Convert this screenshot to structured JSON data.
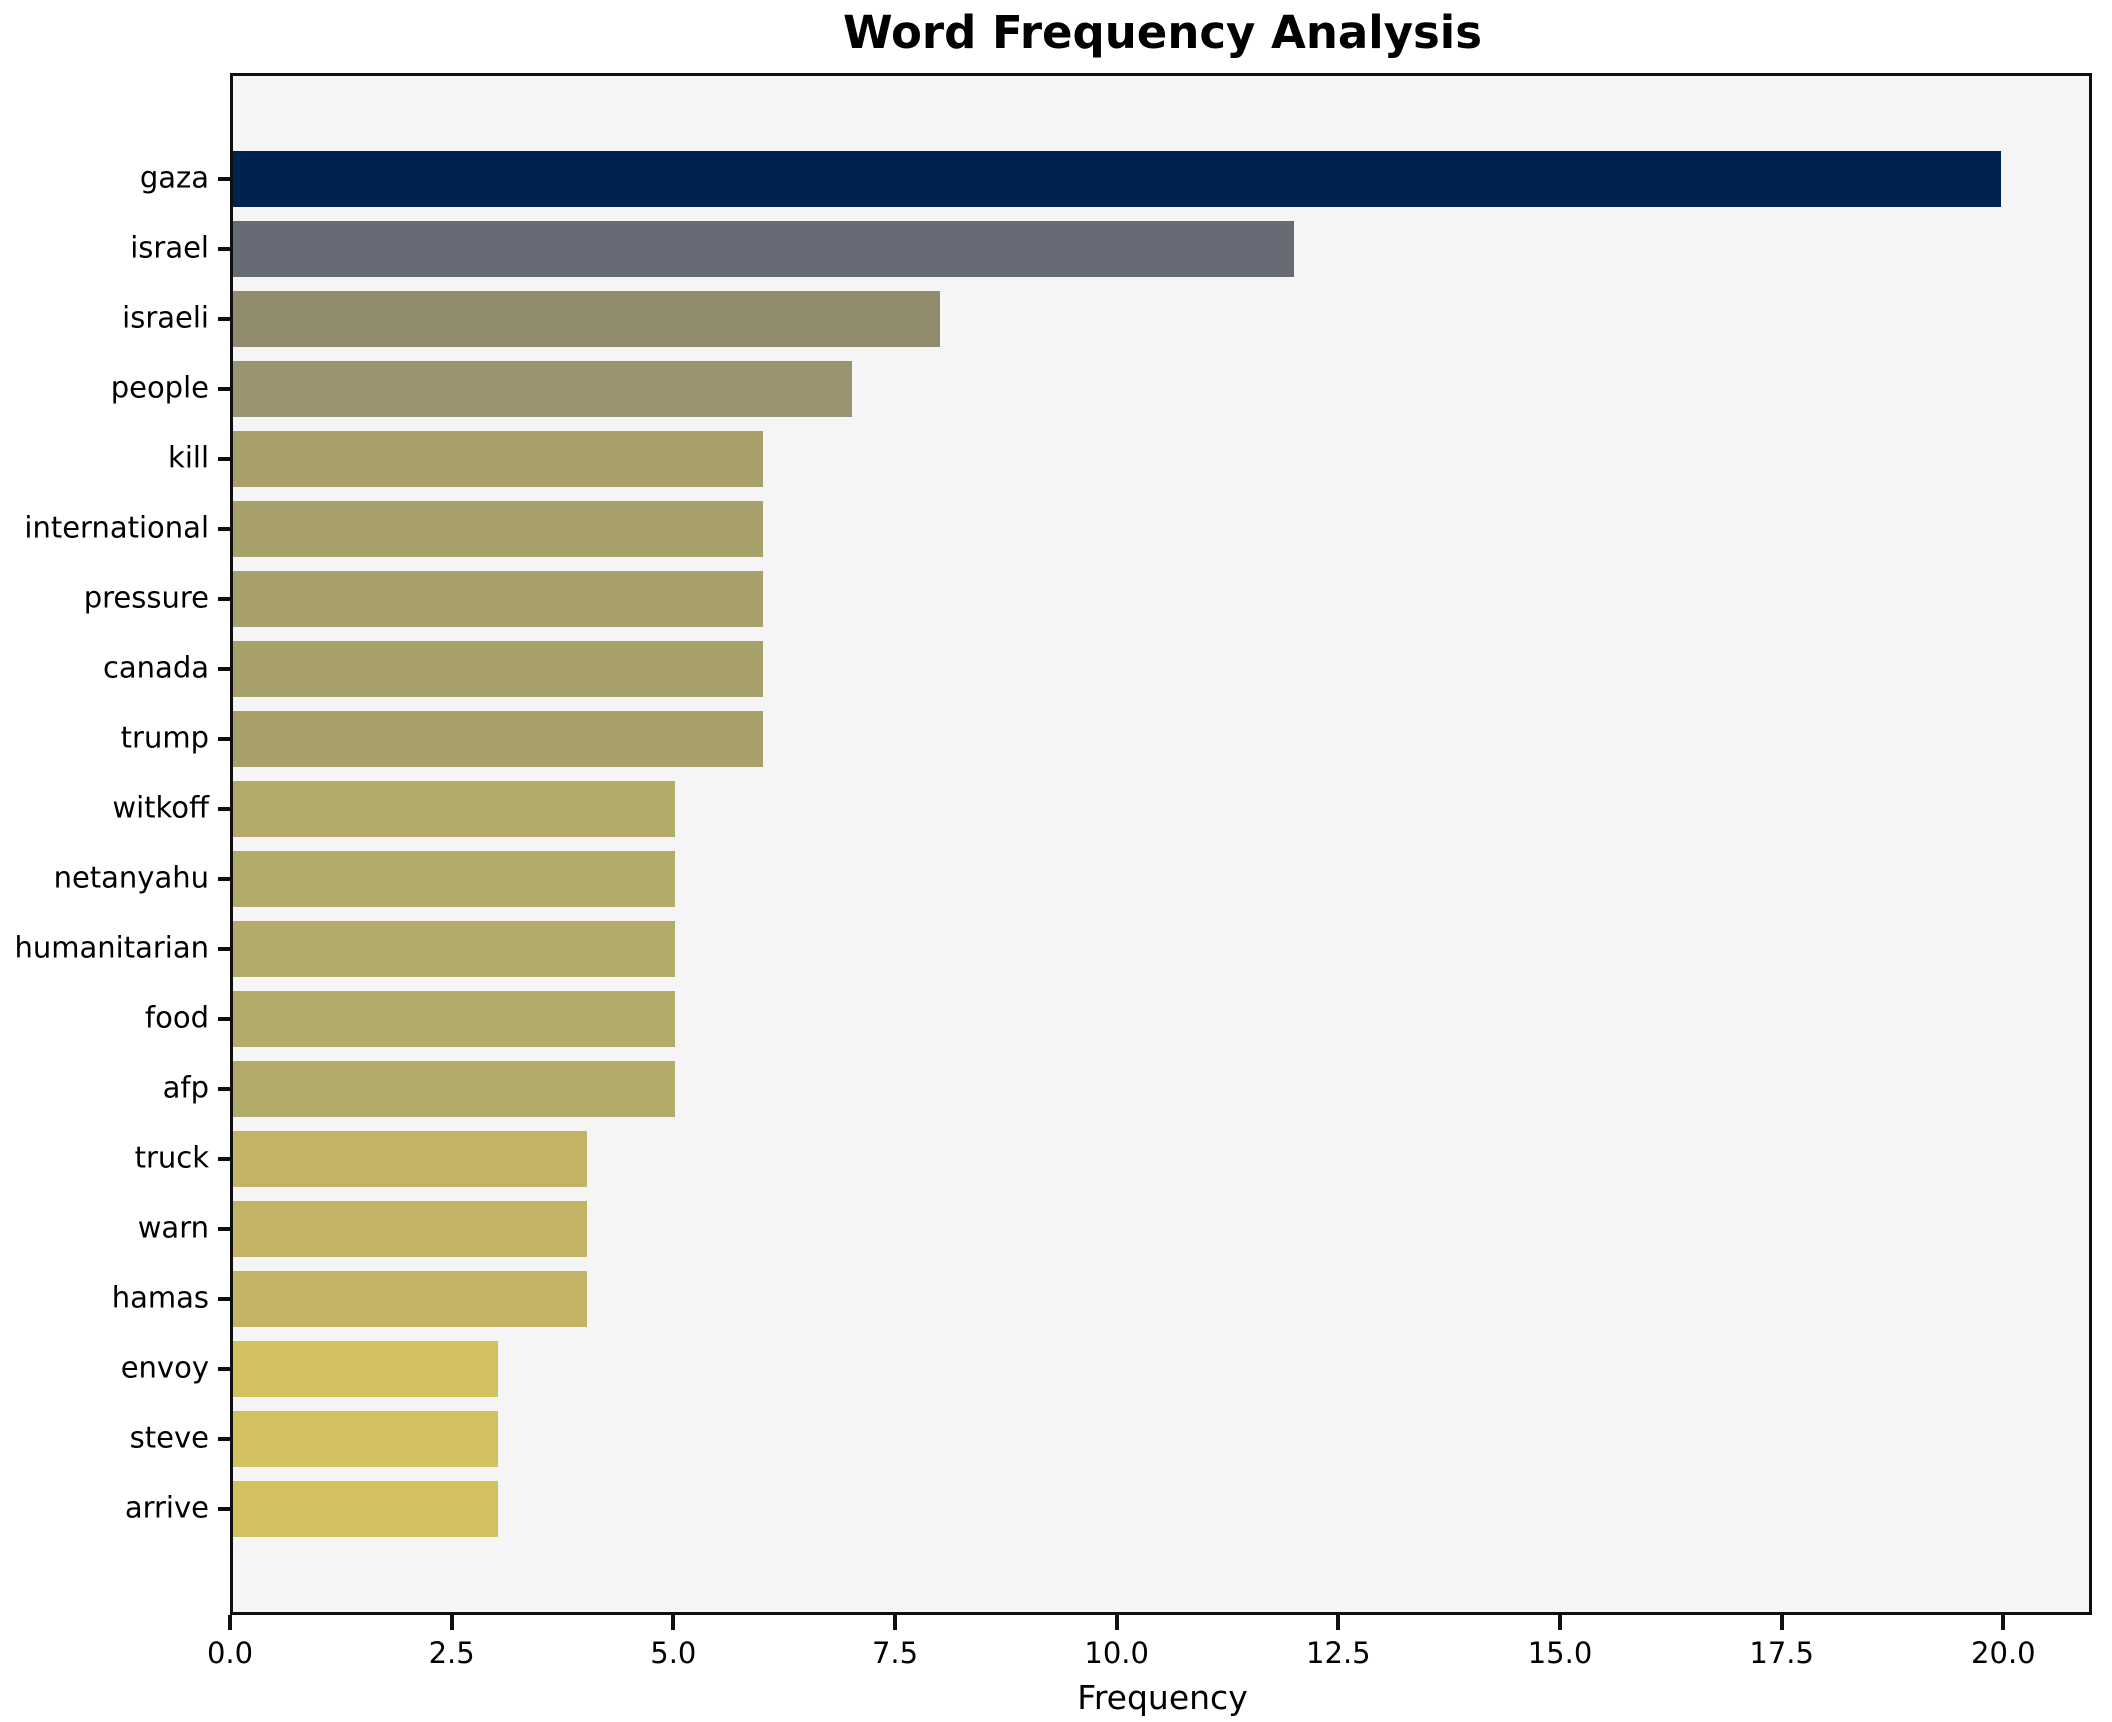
{
  "chart_data": {
    "type": "bar",
    "orientation": "horizontal",
    "title": "Word Frequency Analysis",
    "xlabel": "Frequency",
    "ylabel": "",
    "categories": [
      "gaza",
      "israel",
      "israeli",
      "people",
      "kill",
      "international",
      "pressure",
      "canada",
      "trump",
      "witkoff",
      "netanyahu",
      "humanitarian",
      "food",
      "afp",
      "truck",
      "warn",
      "hamas",
      "envoy",
      "steve",
      "arrive"
    ],
    "values": [
      20,
      12,
      8,
      7,
      6,
      6,
      6,
      6,
      6,
      5,
      5,
      5,
      5,
      5,
      4,
      4,
      4,
      3,
      3,
      3
    ],
    "bar_colors": [
      "#00224e",
      "#666b76",
      "#918b6e",
      "#9b9470",
      "#a7a06b",
      "#a7a06b",
      "#a7a06b",
      "#a7a06b",
      "#a7a06b",
      "#b2aa6a",
      "#b2aa6a",
      "#b2aa6a",
      "#b2aa6a",
      "#b2aa6a",
      "#c2b464",
      "#c2b464",
      "#c2b464",
      "#d3c15f",
      "#d3c15f",
      "#d3c15f"
    ],
    "xlim": [
      0,
      21
    ],
    "xticks": [
      0,
      2.5,
      5,
      7.5,
      10,
      12.5,
      15,
      17.5,
      20
    ],
    "xtick_labels": [
      "0.0",
      "2.5",
      "5.0",
      "7.5",
      "10.0",
      "12.5",
      "15.0",
      "17.5",
      "20.0"
    ],
    "grid": false,
    "legend": "none",
    "plot_background": "#f5f5f6",
    "figure_background": "#ffffff",
    "spine_color": "#0f0f0f"
  }
}
